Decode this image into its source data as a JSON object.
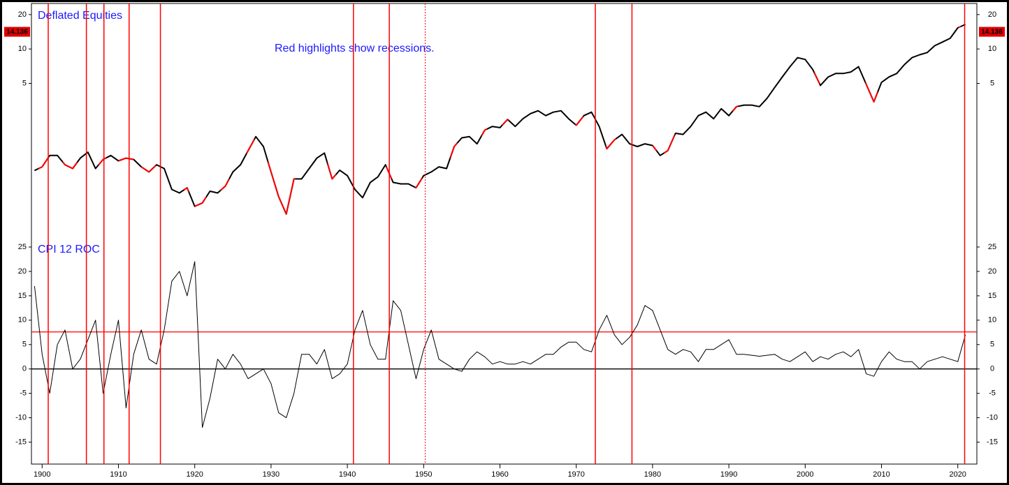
{
  "chart_data": [
    {
      "type": "line",
      "title": "Deflated Equities",
      "annotation": "Red highlights show recessions.",
      "log_scale": true,
      "x": [
        1899,
        1900,
        1901,
        1902,
        1903,
        1904,
        1905,
        1906,
        1907,
        1908,
        1909,
        1910,
        1911,
        1912,
        1913,
        1914,
        1915,
        1916,
        1917,
        1918,
        1919,
        1920,
        1921,
        1922,
        1923,
        1924,
        1925,
        1926,
        1927,
        1928,
        1929,
        1930,
        1931,
        1932,
        1933,
        1934,
        1935,
        1936,
        1937,
        1938,
        1939,
        1940,
        1941,
        1942,
        1943,
        1944,
        1945,
        1946,
        1947,
        1948,
        1949,
        1950,
        1951,
        1952,
        1953,
        1954,
        1955,
        1956,
        1957,
        1958,
        1959,
        1960,
        1961,
        1962,
        1963,
        1964,
        1965,
        1966,
        1967,
        1968,
        1969,
        1970,
        1971,
        1972,
        1973,
        1974,
        1975,
        1976,
        1977,
        1978,
        1979,
        1980,
        1981,
        1982,
        1983,
        1984,
        1985,
        1986,
        1987,
        1988,
        1989,
        1990,
        1991,
        1992,
        1993,
        1994,
        1995,
        1996,
        1997,
        1998,
        1999,
        2000,
        2001,
        2002,
        2003,
        2004,
        2005,
        2006,
        2007,
        2008,
        2009,
        2010,
        2011,
        2012,
        2013,
        2014,
        2015,
        2016,
        2017,
        2018,
        2019,
        2020,
        2021
      ],
      "values": [
        0.865,
        0.93,
        1.17,
        1.17,
        0.97,
        0.9,
        1.11,
        1.25,
        0.9,
        1.08,
        1.17,
        1.05,
        1.11,
        1.08,
        0.93,
        0.84,
        0.97,
        0.9,
        0.59,
        0.55,
        0.61,
        0.42,
        0.45,
        0.57,
        0.55,
        0.63,
        0.84,
        0.97,
        1.29,
        1.71,
        1.4,
        0.84,
        0.51,
        0.36,
        0.73,
        0.73,
        0.9,
        1.11,
        1.23,
        0.73,
        0.87,
        0.78,
        0.59,
        0.5,
        0.68,
        0.76,
        0.97,
        0.68,
        0.66,
        0.66,
        0.61,
        0.78,
        0.84,
        0.93,
        0.9,
        1.4,
        1.67,
        1.71,
        1.48,
        1.95,
        2.1,
        2.05,
        2.42,
        2.1,
        2.45,
        2.72,
        2.88,
        2.61,
        2.8,
        2.88,
        2.45,
        2.15,
        2.61,
        2.8,
        2.1,
        1.34,
        1.6,
        1.79,
        1.48,
        1.4,
        1.48,
        1.43,
        1.17,
        1.29,
        1.83,
        1.79,
        2.1,
        2.61,
        2.8,
        2.45,
        3.0,
        2.61,
        3.13,
        3.23,
        3.23,
        3.13,
        3.7,
        4.6,
        5.68,
        7.0,
        8.4,
        8.1,
        6.6,
        4.8,
        5.68,
        6.1,
        6.1,
        6.3,
        7.0,
        4.9,
        3.45,
        5.1,
        5.7,
        6.1,
        7.3,
        8.4,
        8.9,
        9.3,
        10.7,
        11.5,
        12.4,
        15.3,
        16.4
      ],
      "last_value": 14.136,
      "color": "#000000",
      "highlight_color": "#ff0000",
      "recessions": [
        [
          1899.5,
          1900.9
        ],
        [
          1902.7,
          1904.6
        ],
        [
          1907.4,
          1908.4
        ],
        [
          1910,
          1912
        ],
        [
          1913,
          1914.9
        ],
        [
          1918.6,
          1919.2
        ],
        [
          1920,
          1921.5
        ],
        [
          1923.4,
          1924.5
        ],
        [
          1926.8,
          1927.8
        ],
        [
          1929.6,
          1933.2
        ],
        [
          1937.4,
          1938.5
        ],
        [
          1945.1,
          1945.8
        ],
        [
          1948.9,
          1949.8
        ],
        [
          1953.5,
          1954.4
        ],
        [
          1957.6,
          1958.3
        ],
        [
          1960.3,
          1961.1
        ],
        [
          1969.9,
          1970.9
        ],
        [
          1973.9,
          1975.2
        ],
        [
          1980,
          1980.5
        ],
        [
          1981.5,
          1982.9
        ],
        [
          1990.5,
          1991.2
        ],
        [
          2001.2,
          2001.9
        ],
        [
          2007.9,
          2009.5
        ],
        [
          2020.1,
          2020.4
        ]
      ],
      "xlim": [
        1898.6,
        2022.5
      ],
      "ylim": [
        0.235,
        25
      ],
      "yticks": [
        5,
        10,
        20
      ]
    },
    {
      "type": "line",
      "title": "CPI 12 ROC",
      "x": [
        1899,
        1900,
        1901,
        1902,
        1903,
        1904,
        1905,
        1906,
        1907,
        1908,
        1909,
        1910,
        1911,
        1912,
        1913,
        1914,
        1915,
        1916,
        1917,
        1918,
        1919,
        1920,
        1921,
        1922,
        1923,
        1924,
        1925,
        1926,
        1927,
        1928,
        1929,
        1930,
        1931,
        1932,
        1933,
        1934,
        1935,
        1936,
        1937,
        1938,
        1939,
        1940,
        1941,
        1942,
        1943,
        1944,
        1945,
        1946,
        1947,
        1948,
        1949,
        1950,
        1951,
        1952,
        1953,
        1954,
        1955,
        1956,
        1957,
        1958,
        1959,
        1960,
        1961,
        1962,
        1963,
        1964,
        1965,
        1966,
        1967,
        1968,
        1969,
        1970,
        1971,
        1972,
        1973,
        1974,
        1975,
        1976,
        1977,
        1978,
        1979,
        1980,
        1981,
        1982,
        1983,
        1984,
        1985,
        1986,
        1987,
        1988,
        1989,
        1990,
        1991,
        1992,
        1993,
        1994,
        1995,
        1996,
        1997,
        1998,
        1999,
        2000,
        2001,
        2002,
        2003,
        2004,
        2005,
        2006,
        2007,
        2008,
        2009,
        2010,
        2011,
        2012,
        2013,
        2014,
        2015,
        2016,
        2017,
        2018,
        2019,
        2020,
        2021
      ],
      "values": [
        17,
        3,
        -5,
        5,
        8,
        0,
        2,
        6,
        10,
        -5,
        3,
        10,
        -8,
        3,
        8,
        2,
        1,
        8,
        18,
        20,
        15,
        22,
        -12,
        -6,
        2,
        0,
        3,
        1,
        -2,
        -1,
        0,
        -3,
        -9,
        -10,
        -5,
        3,
        3,
        1,
        4,
        -2,
        -1,
        1,
        8,
        12,
        5,
        2,
        2,
        14,
        12,
        5,
        -2,
        4,
        8,
        2,
        1,
        0,
        -0.5,
        2,
        3.5,
        2.5,
        1,
        1.5,
        1,
        1,
        1.5,
        1,
        2,
        3,
        3,
        4.5,
        5.5,
        5.5,
        4,
        3.5,
        8,
        11,
        7,
        5,
        6.5,
        9,
        13,
        12,
        8,
        4,
        3,
        4,
        3.5,
        1.5,
        4,
        4,
        5,
        6,
        3,
        3,
        2.8,
        2.6,
        2.8,
        3,
        2,
        1.5,
        2.5,
        3.5,
        1.5,
        2.5,
        2,
        3,
        3.5,
        2.5,
        4,
        -1,
        -1.5,
        1.5,
        3.5,
        2,
        1.5,
        1.5,
        0,
        1.5,
        2,
        2.5,
        2,
        1.5,
        7
      ],
      "color": "#000000",
      "reference_lines": [
        {
          "value": 7.6,
          "color": "#ff0000"
        },
        {
          "value": 0,
          "color": "#000000"
        }
      ],
      "xlim": [
        1898.6,
        2022.5
      ],
      "ylim": [
        -19.5,
        27
      ],
      "yticks": [
        25,
        20,
        15,
        10,
        5,
        0,
        -5,
        -10,
        -15
      ],
      "xticks": [
        1900,
        1910,
        1920,
        1930,
        1940,
        1950,
        1960,
        1970,
        1980,
        1990,
        2000,
        2010,
        2020
      ]
    }
  ],
  "recession_lines": [
    1900.8,
    1905.8,
    1908.1,
    1911.4,
    1915.5,
    1940.8,
    1945.5,
    1972.5,
    1977.3,
    2020.9
  ],
  "dotted_lines": [
    1950.2
  ],
  "line_color": "#ff0000"
}
